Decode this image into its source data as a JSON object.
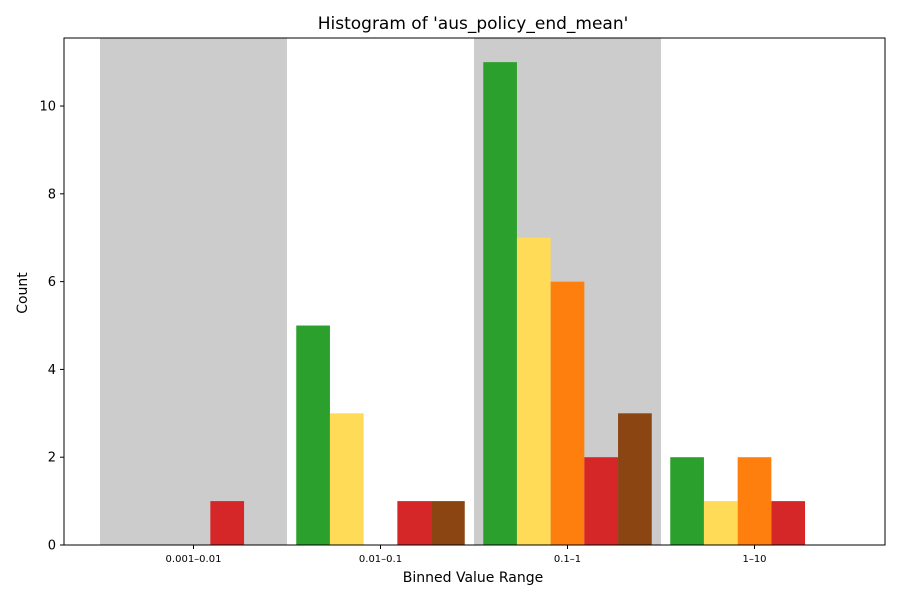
{
  "chart_data": {
    "type": "bar",
    "title": "Histogram of 'aus_policy_end_mean'",
    "xlabel": "Binned Value Range",
    "ylabel": "Count",
    "categories": [
      "0.001–0.01",
      "0.01–0.1",
      "0.1–1",
      "1–10"
    ],
    "ylim": [
      0,
      11.55
    ],
    "yticks": [
      0,
      2,
      4,
      6,
      8,
      10
    ],
    "grid": false,
    "legend": "none",
    "shaded_bins": [
      0,
      2
    ],
    "shade_color": "#cccccc",
    "series": [
      {
        "color": "#2ca02c",
        "values": [
          0,
          5,
          11,
          2
        ]
      },
      {
        "color": "#ffdb58",
        "values": [
          0,
          3,
          7,
          1
        ]
      },
      {
        "color": "#ff7f0e",
        "values": [
          0,
          0,
          6,
          2
        ]
      },
      {
        "color": "#d62728",
        "values": [
          1,
          1,
          2,
          1
        ]
      },
      {
        "color": "#8b4513",
        "values": [
          0,
          1,
          3,
          0
        ]
      }
    ]
  }
}
